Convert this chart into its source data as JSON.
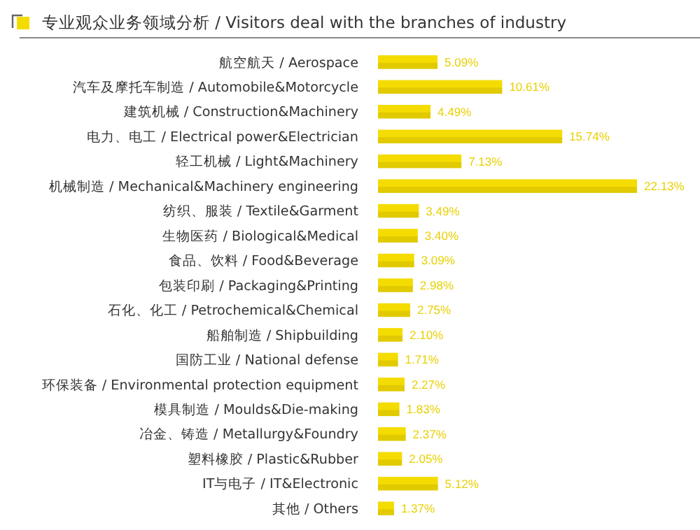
{
  "chart_data": {
    "type": "bar",
    "orientation": "horizontal",
    "title": "专业观众业务领域分析 / Visitors deal with the branches of industry",
    "categories": [
      "航空航天 / Aerospace",
      "汽车及摩托车制造 / Automobile&Motorcycle",
      "建筑机械 / Construction&Machinery",
      "电力、电工 / Electrical power&Electrician",
      "轻工机械 / Light&Machinery",
      "机械制造 / Mechanical&Machinery engineering",
      "纺织、服装 / Textile&Garment",
      "生物医药 / Biological&Medical",
      "食品、饮料 / Food&Beverage",
      "包装印刷 / Packaging&Printing",
      "石化、化工 / Petrochemical&Chemical",
      "船舶制造 / Shipbuilding",
      "国防工业 / National defense",
      "环保装备 / Environmental protection equipment",
      "模具制造 / Moulds&Die-making",
      "冶金、铸造 / Metallurgy&Foundry",
      "塑料橡胶 / Plastic&Rubber",
      "IT与电子 / IT&Electronic",
      "其他 / Others"
    ],
    "values": [
      5.09,
      10.61,
      4.49,
      15.74,
      7.13,
      22.13,
      3.49,
      3.4,
      3.09,
      2.98,
      2.75,
      2.1,
      1.71,
      2.27,
      1.83,
      2.37,
      2.05,
      5.12,
      1.37
    ],
    "value_labels": [
      "5.09%",
      "10.61%",
      "4.49%",
      "15.74%",
      "7.13%",
      "22.13%",
      "3.49%",
      "3.40%",
      "3.09%",
      "2.98%",
      "2.75%",
      "2.10%",
      "1.71%",
      "2.27%",
      "1.83%",
      "2.37%",
      "2.05%",
      "5.12%",
      "1.37%"
    ],
    "color": "#f5dc00"
  }
}
